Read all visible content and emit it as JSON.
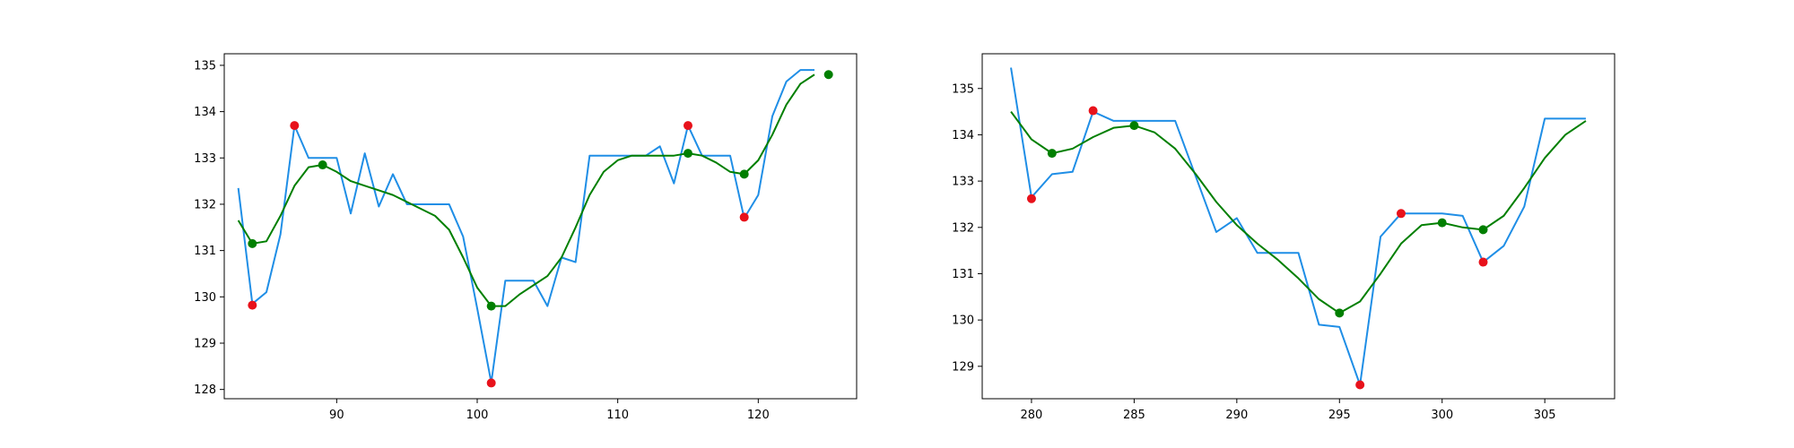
{
  "figure": {
    "background": "#ffffff"
  },
  "chart_data": [
    {
      "type": "line",
      "xlim": [
        82.0,
        127.0
      ],
      "ylim": [
        127.8,
        135.25
      ],
      "xticks": [
        90,
        100,
        110,
        120
      ],
      "yticks": [
        128,
        129,
        130,
        131,
        132,
        133,
        134,
        135
      ],
      "series": [
        {
          "color": "#1f8ee6",
          "style": "line",
          "x": [
            83,
            84,
            85,
            86,
            87,
            88,
            89,
            90,
            91,
            92,
            93,
            94,
            95,
            96,
            97,
            98,
            99,
            100,
            101,
            102,
            103,
            104,
            105,
            106,
            107,
            108,
            109,
            110,
            111,
            112,
            113,
            114,
            115,
            116,
            117,
            118,
            119,
            120,
            121,
            122,
            123,
            124
          ],
          "y": [
            132.35,
            129.85,
            130.1,
            131.35,
            133.7,
            133.0,
            133.0,
            133.0,
            131.8,
            133.1,
            131.95,
            132.65,
            132.0,
            132.0,
            132.0,
            132.0,
            131.3,
            129.75,
            128.15,
            130.35,
            130.35,
            130.35,
            129.8,
            130.85,
            130.75,
            133.05,
            133.05,
            133.05,
            133.05,
            133.05,
            133.25,
            132.45,
            133.7,
            133.05,
            133.05,
            133.05,
            131.7,
            132.2,
            133.9,
            134.65,
            134.9,
            134.9
          ]
        },
        {
          "color": "#007f00",
          "style": "line",
          "x": [
            83,
            84,
            85,
            86,
            87,
            88,
            89,
            90,
            91,
            92,
            93,
            94,
            95,
            96,
            97,
            98,
            99,
            100,
            101,
            102,
            103,
            104,
            105,
            106,
            107,
            108,
            109,
            110,
            111,
            112,
            113,
            114,
            115,
            116,
            117,
            118,
            119,
            120,
            121,
            122,
            123,
            124
          ],
          "y": [
            131.65,
            131.15,
            131.2,
            131.75,
            132.4,
            132.8,
            132.85,
            132.7,
            132.5,
            132.4,
            132.3,
            132.2,
            132.05,
            131.9,
            131.75,
            131.45,
            130.85,
            130.2,
            129.8,
            129.8,
            130.05,
            130.25,
            130.45,
            130.85,
            131.5,
            132.2,
            132.7,
            132.95,
            133.05,
            133.05,
            133.05,
            133.05,
            133.1,
            133.05,
            132.9,
            132.7,
            132.65,
            132.95,
            133.5,
            134.15,
            134.6,
            134.8
          ]
        },
        {
          "color": "#e8121b",
          "style": "points",
          "x": [
            84,
            87,
            101,
            115,
            119
          ],
          "y": [
            129.82,
            133.7,
            128.14,
            133.7,
            131.72
          ]
        },
        {
          "color": "#007f00",
          "style": "points",
          "x": [
            84,
            89,
            101,
            115,
            119,
            125
          ],
          "y": [
            131.15,
            132.85,
            129.8,
            133.1,
            132.65,
            134.8
          ]
        }
      ]
    },
    {
      "type": "line",
      "xlim": [
        277.6,
        308.4
      ],
      "ylim": [
        128.3,
        135.75
      ],
      "xticks": [
        280,
        285,
        290,
        295,
        300,
        305
      ],
      "yticks": [
        129,
        130,
        131,
        132,
        133,
        134,
        135
      ],
      "series": [
        {
          "color": "#1f8ee6",
          "style": "line",
          "x": [
            279,
            280,
            281,
            282,
            283,
            284,
            285,
            286,
            287,
            288,
            289,
            290,
            291,
            292,
            293,
            294,
            295,
            296,
            297,
            298,
            299,
            300,
            301,
            302,
            303,
            304,
            305,
            306,
            307
          ],
          "y": [
            135.45,
            132.65,
            133.15,
            133.2,
            134.5,
            134.3,
            134.3,
            134.3,
            134.3,
            133.1,
            131.9,
            132.2,
            131.45,
            131.45,
            131.45,
            129.9,
            129.85,
            128.6,
            131.8,
            132.3,
            132.3,
            132.3,
            132.25,
            131.25,
            131.6,
            132.45,
            134.35,
            134.35,
            134.35
          ]
        },
        {
          "color": "#007f00",
          "style": "line",
          "x": [
            279,
            280,
            281,
            282,
            283,
            284,
            285,
            286,
            287,
            288,
            289,
            290,
            291,
            292,
            293,
            294,
            295,
            296,
            297,
            298,
            299,
            300,
            301,
            302,
            303,
            304,
            305,
            306,
            307
          ],
          "y": [
            134.5,
            133.9,
            133.6,
            133.7,
            133.95,
            134.15,
            134.2,
            134.05,
            133.7,
            133.15,
            132.55,
            132.05,
            131.65,
            131.3,
            130.9,
            130.45,
            130.15,
            130.4,
            131.0,
            131.65,
            132.05,
            132.1,
            132.0,
            131.95,
            132.25,
            132.85,
            133.5,
            134.0,
            134.3
          ]
        },
        {
          "color": "#e8121b",
          "style": "points",
          "x": [
            280,
            283,
            296,
            298,
            302
          ],
          "y": [
            132.62,
            134.52,
            128.6,
            132.3,
            131.25
          ]
        },
        {
          "color": "#007f00",
          "style": "points",
          "x": [
            281,
            285,
            295,
            300,
            302
          ],
          "y": [
            133.6,
            134.2,
            130.15,
            132.1,
            131.95
          ]
        }
      ]
    }
  ]
}
